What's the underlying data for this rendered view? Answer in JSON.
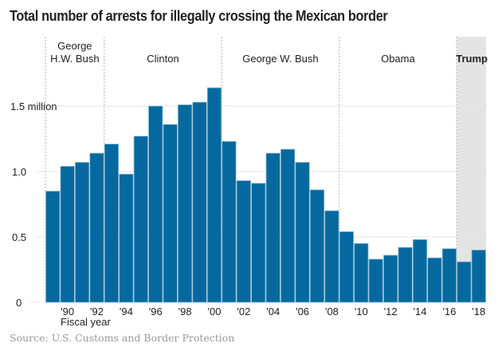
{
  "title": "Total number of arrests for illegally crossing the Mexican border",
  "source": "Source: U.S. Customs and Border Protection",
  "chart_data": {
    "type": "bar",
    "title": "Total number of arrests for illegally crossing the Mexican border",
    "xlabel": "Fiscal year",
    "ylabel": "",
    "ylim": [
      0,
      1.75
    ],
    "grid": true,
    "unit": "million",
    "categories": [
      "1989",
      "1990",
      "1991",
      "1992",
      "1993",
      "1994",
      "1995",
      "1996",
      "1997",
      "1998",
      "1999",
      "2000",
      "2001",
      "2002",
      "2003",
      "2004",
      "2005",
      "2006",
      "2007",
      "2008",
      "2009",
      "2010",
      "2011",
      "2012",
      "2013",
      "2014",
      "2015",
      "2016",
      "2017",
      "2018"
    ],
    "values": [
      0.85,
      1.04,
      1.07,
      1.14,
      1.21,
      0.98,
      1.27,
      1.5,
      1.36,
      1.51,
      1.53,
      1.64,
      1.23,
      0.93,
      0.91,
      1.14,
      1.17,
      1.07,
      0.86,
      0.7,
      0.54,
      0.45,
      0.33,
      0.36,
      0.42,
      0.48,
      0.34,
      0.41,
      0.31,
      0.4
    ],
    "y_ticks": [
      {
        "value": 0,
        "label": "0"
      },
      {
        "value": 0.5,
        "label": "0.5"
      },
      {
        "value": 1.0,
        "label": "1.0"
      },
      {
        "value": 1.5,
        "label": "1.5 million"
      }
    ],
    "x_ticks": [
      {
        "index": 1,
        "label": "'90"
      },
      {
        "index": 3,
        "label": "'92"
      },
      {
        "index": 5,
        "label": "'94"
      },
      {
        "index": 7,
        "label": "'96"
      },
      {
        "index": 9,
        "label": "'98"
      },
      {
        "index": 11,
        "label": "'00"
      },
      {
        "index": 13,
        "label": "'02"
      },
      {
        "index": 15,
        "label": "'04"
      },
      {
        "index": 17,
        "label": "'06"
      },
      {
        "index": 19,
        "label": "'08"
      },
      {
        "index": 21,
        "label": "'10"
      },
      {
        "index": 23,
        "label": "'12"
      },
      {
        "index": 25,
        "label": "'14"
      },
      {
        "index": 27,
        "label": "'16"
      },
      {
        "index": 29,
        "label": "'18"
      }
    ],
    "presidencies": [
      {
        "name": "George H.W. Bush",
        "lines": [
          "George",
          "H.W. Bush"
        ],
        "start_index": 0,
        "end_index": 4,
        "highlight": false
      },
      {
        "name": "Clinton",
        "lines": [
          "Clinton"
        ],
        "start_index": 4,
        "end_index": 12,
        "highlight": false
      },
      {
        "name": "George W. Bush",
        "lines": [
          "George W. Bush"
        ],
        "start_index": 12,
        "end_index": 20,
        "highlight": false
      },
      {
        "name": "Obama",
        "lines": [
          "Obama"
        ],
        "start_index": 20,
        "end_index": 28,
        "highlight": false
      },
      {
        "name": "Trump",
        "lines": [
          "Trump"
        ],
        "start_index": 28,
        "end_index": 30,
        "highlight": true
      }
    ],
    "colors": {
      "bar": "#0569a0",
      "bar_edge": "#8fb9d3",
      "highlight_bg": "#e4e4e4",
      "grid": "#e6e6e6",
      "divider": "#cccccc"
    }
  }
}
